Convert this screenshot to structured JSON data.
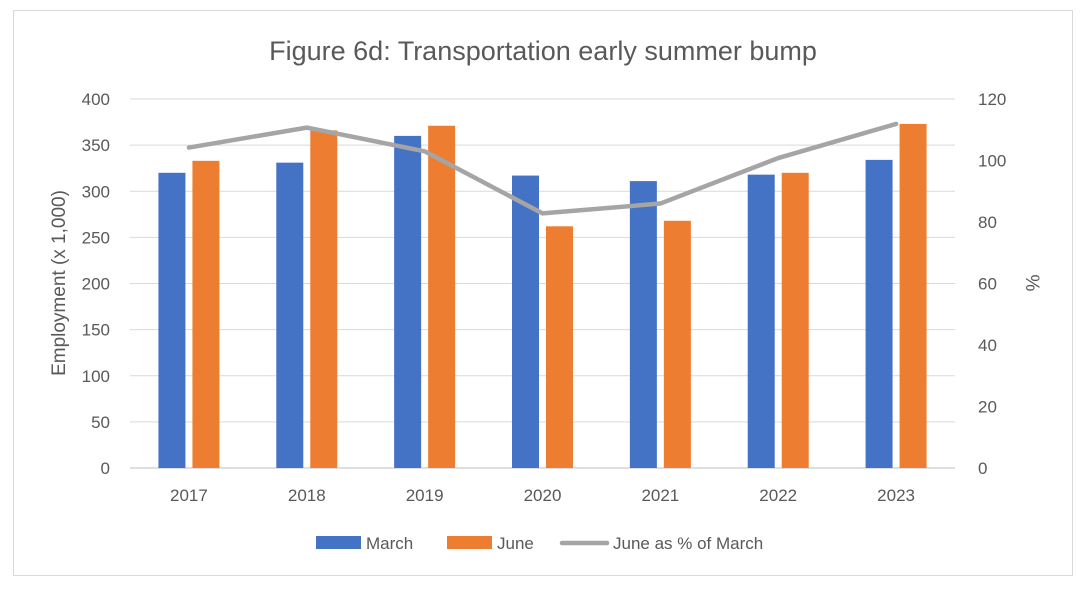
{
  "chart_data": {
    "type": "bar",
    "title": "Figure 6d: Transportation early summer bump",
    "categories": [
      "2017",
      "2018",
      "2019",
      "2020",
      "2021",
      "2022",
      "2023"
    ],
    "series": [
      {
        "name": "March",
        "kind": "bar",
        "axis": "left",
        "color": "#4472C4",
        "values": [
          320,
          331,
          360,
          317,
          311,
          318,
          334
        ]
      },
      {
        "name": "June",
        "kind": "bar",
        "axis": "left",
        "color": "#ED7D31",
        "values": [
          333,
          366,
          371,
          262,
          268,
          320,
          373
        ]
      },
      {
        "name": "June as % of March",
        "kind": "line",
        "axis": "right",
        "color": "#A5A5A5",
        "values": [
          104.2,
          110.7,
          103.0,
          82.8,
          86.0,
          100.8,
          111.9
        ]
      }
    ],
    "ylabel": "Employment (x 1,000)",
    "y2label": "%",
    "ylim": [
      0,
      400
    ],
    "y2lim": [
      0,
      120
    ],
    "yticks": [
      "0",
      "50",
      "100",
      "150",
      "200",
      "250",
      "300",
      "350",
      "400"
    ],
    "y2ticks": [
      "0",
      "20",
      "40",
      "60",
      "80",
      "100",
      "120"
    ],
    "grid": true,
    "legend_position": "bottom"
  }
}
